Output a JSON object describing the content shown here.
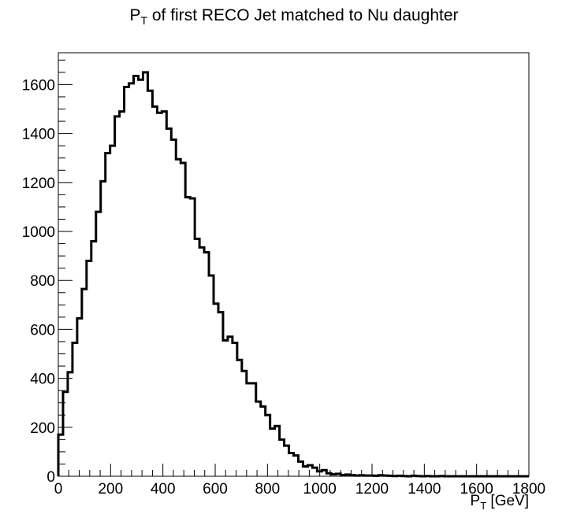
{
  "chart_data": {
    "type": "histogram-step",
    "title_main": "P",
    "title_sub": "T",
    "title_rest": " of first RECO Jet matched to Nu daughter",
    "xlabel_main": "P",
    "xlabel_sub": "T",
    "xlabel_rest": " [GeV]",
    "ylabel": "",
    "xlim": [
      0,
      1800
    ],
    "ylim": [
      0,
      1730
    ],
    "bin_width": 18,
    "x_ticks": [
      0,
      200,
      400,
      600,
      800,
      1000,
      1200,
      1400,
      1600,
      1800
    ],
    "x_tick_labels": [
      "0",
      "200",
      "400",
      "600",
      "800",
      "1000",
      "1200",
      "1400",
      "1600",
      "1800"
    ],
    "y_ticks": [
      0,
      200,
      400,
      600,
      800,
      1000,
      1200,
      1400,
      1600
    ],
    "y_tick_labels": [
      "0",
      "200",
      "400",
      "600",
      "800",
      "1000",
      "1200",
      "1400",
      "1600"
    ],
    "grid": false,
    "legend": "none",
    "line_color": "#000000",
    "values": [
      170,
      345,
      425,
      545,
      645,
      765,
      880,
      960,
      1080,
      1205,
      1320,
      1350,
      1470,
      1490,
      1590,
      1605,
      1635,
      1620,
      1650,
      1575,
      1510,
      1485,
      1490,
      1420,
      1375,
      1295,
      1280,
      1140,
      1135,
      970,
      935,
      915,
      820,
      705,
      670,
      555,
      570,
      545,
      475,
      430,
      380,
      380,
      305,
      285,
      250,
      195,
      205,
      150,
      125,
      95,
      85,
      60,
      40,
      45,
      35,
      20,
      25,
      12,
      8,
      10,
      5,
      7,
      5,
      3,
      4,
      3,
      3,
      2,
      4,
      3,
      2,
      1,
      2,
      1,
      0,
      2,
      1,
      0,
      1,
      0,
      0,
      1,
      0,
      0,
      0,
      0,
      0,
      0,
      0,
      0,
      0,
      0,
      0,
      0,
      0,
      0,
      0,
      0,
      0,
      0
    ]
  }
}
